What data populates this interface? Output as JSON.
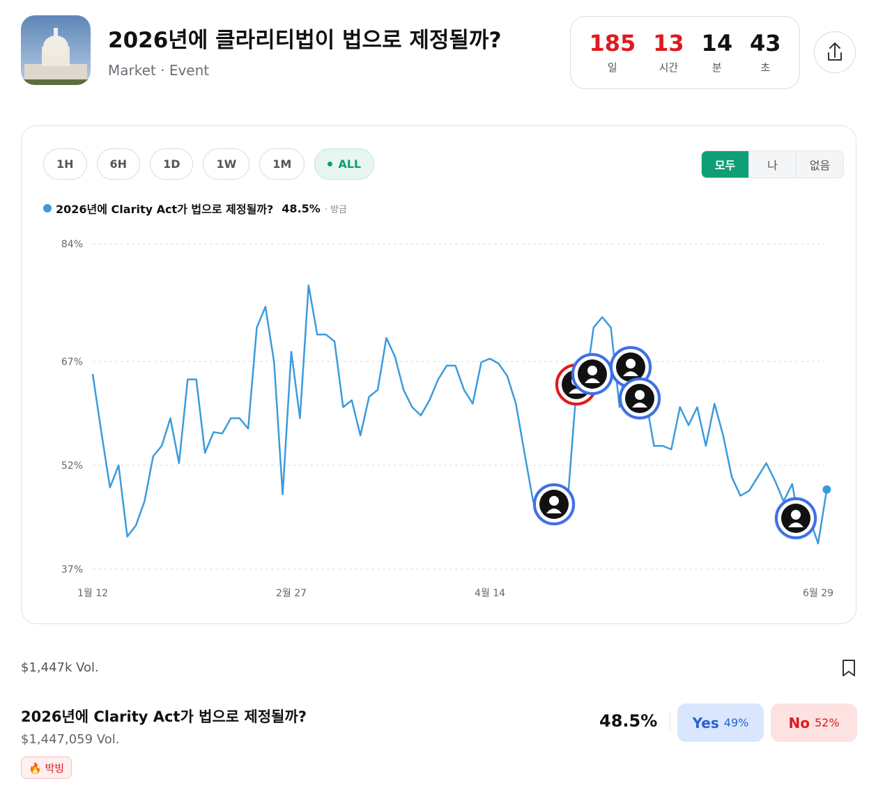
{
  "header": {
    "title": "2026년에 클라리티법이 법으로 제정될까?",
    "subtitle": "Market · Event"
  },
  "countdown": [
    {
      "value": "185",
      "unit": "일"
    },
    {
      "value": "13",
      "unit": "시간"
    },
    {
      "value": "14",
      "unit": "분"
    },
    {
      "value": "43",
      "unit": "초"
    }
  ],
  "range_buttons": [
    "1H",
    "6H",
    "1D",
    "1W",
    "1M",
    "ALL"
  ],
  "filter_buttons": [
    "모두",
    "나",
    "없음"
  ],
  "chart_data": {
    "type": "line",
    "current_label": "48.5%",
    "updated": "· 방금",
    "categories": [
      "1월 12",
      null,
      null,
      null,
      null,
      null,
      null,
      null,
      null,
      null,
      null,
      null,
      null,
      null,
      null,
      null,
      null,
      null,
      null,
      null,
      null,
      null,
      null,
      "2월 27",
      null,
      null,
      null,
      null,
      null,
      null,
      null,
      null,
      null,
      null,
      null,
      null,
      null,
      null,
      null,
      null,
      null,
      null,
      null,
      null,
      null,
      null,
      "4월 14",
      null,
      null,
      null,
      null,
      null,
      null,
      null,
      null,
      null,
      null,
      null,
      null,
      null,
      null,
      null,
      null,
      null,
      null,
      null,
      null,
      null,
      null,
      null,
      null,
      null,
      null,
      null,
      null,
      null,
      null,
      null,
      null,
      null,
      null,
      null,
      null,
      null,
      "6월 29",
      null
    ],
    "series": [
      {
        "name": "2026년에 Clarity Act가 법으로 제정될까?",
        "color": "#3a9bdc",
        "values": [
          65.2,
          56.8,
          48.8,
          52,
          41.7,
          43.3,
          46.8,
          53.3,
          54.8,
          58.8,
          52.3,
          64.4,
          64.4,
          53.8,
          56.8,
          56.6,
          58.8,
          58.8,
          57.3,
          71.9,
          74.9,
          66.9,
          47.8,
          68.4,
          58.8,
          78,
          70.9,
          70.9,
          69.9,
          60.4,
          61.4,
          56.3,
          61.9,
          62.9,
          70.4,
          67.7,
          62.9,
          60.4,
          59.2,
          61.4,
          64.4,
          66.4,
          66.4,
          62.9,
          60.9,
          66.9,
          67.4,
          66.7,
          64.9,
          60.9,
          53.8,
          46.8,
          44.8,
          44.8,
          44.8,
          46.8,
          62.9,
          62.9,
          71.9,
          73.4,
          71.9,
          60.4,
          68.9,
          62.9,
          61.9,
          54.8,
          54.8,
          54.3,
          60.4,
          57.8,
          60.4,
          54.8,
          60.9,
          56.3,
          50.3,
          47.6,
          48.3,
          50.3,
          52.3,
          49.8,
          46.8,
          49.3,
          42.3,
          44.3,
          40.7,
          48.5
        ]
      }
    ],
    "ylim": [
      37,
      84
    ],
    "yticks": [
      {
        "value": 84,
        "label": "84%"
      },
      {
        "value": 67,
        "label": "67%"
      },
      {
        "value": 52,
        "label": "52%"
      },
      {
        "value": 37,
        "label": "37%"
      }
    ],
    "grid": true
  },
  "volume": "$1,447k Vol.",
  "market": {
    "title": "2026년에 Clarity Act가 법으로 제정될까?",
    "volume": "$1,447,059 Vol.",
    "badge": "🔥 박빙",
    "probability": "48.5%",
    "yes": {
      "label": "Yes",
      "price": "49%"
    },
    "no": {
      "label": "No",
      "price": "52%"
    }
  }
}
